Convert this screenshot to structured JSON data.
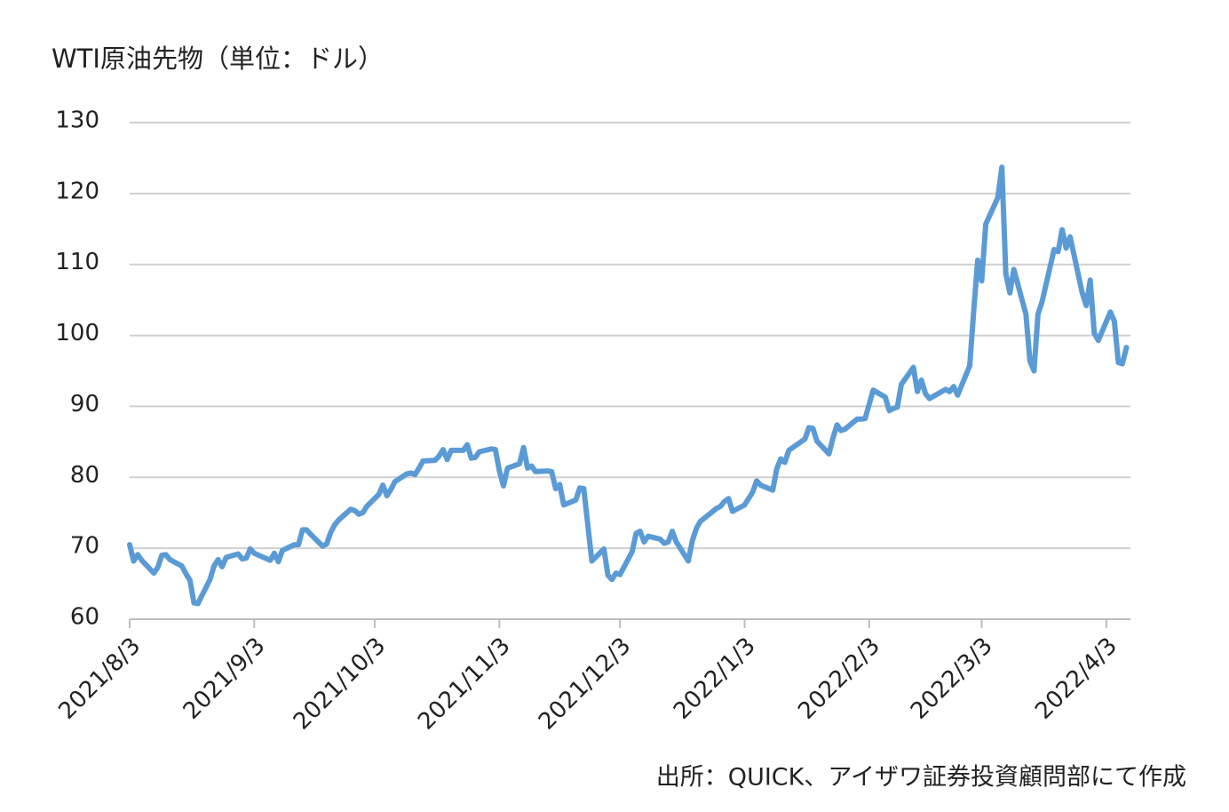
{
  "chart_data": {
    "type": "line",
    "title": "WTI原油先物（単位：ドル）",
    "source": "出所：QUICK、アイザワ証券投資顧問部にて作成",
    "color": "#5b9bd5",
    "xlim": [
      "2021/8/3",
      "2022/4/9"
    ],
    "xticks": [
      "2021/8/3",
      "2021/9/3",
      "2021/10/3",
      "2021/11/3",
      "2021/12/3",
      "2022/1/3",
      "2022/2/3",
      "2022/3/3",
      "2022/4/3"
    ],
    "ylim": [
      60,
      130
    ],
    "yticks": [
      60,
      70,
      80,
      90,
      100,
      110,
      120,
      130
    ],
    "grid": true,
    "x": [
      "2021/8/3",
      "2021/8/4",
      "2021/8/5",
      "2021/8/6",
      "2021/8/9",
      "2021/8/10",
      "2021/8/11",
      "2021/8/12",
      "2021/8/13",
      "2021/8/16",
      "2021/8/17",
      "2021/8/18",
      "2021/8/19",
      "2021/8/20",
      "2021/8/23",
      "2021/8/24",
      "2021/8/25",
      "2021/8/26",
      "2021/8/27",
      "2021/8/30",
      "2021/8/31",
      "2021/9/1",
      "2021/9/2",
      "2021/9/3",
      "2021/9/7",
      "2021/9/8",
      "2021/9/9",
      "2021/9/10",
      "2021/9/13",
      "2021/9/14",
      "2021/9/15",
      "2021/9/16",
      "2021/9/17",
      "2021/9/20",
      "2021/9/21",
      "2021/9/22",
      "2021/9/23",
      "2021/9/24",
      "2021/9/27",
      "2021/9/28",
      "2021/9/29",
      "2021/9/30",
      "2021/10/1",
      "2021/10/4",
      "2021/10/5",
      "2021/10/6",
      "2021/10/7",
      "2021/10/8",
      "2021/10/11",
      "2021/10/12",
      "2021/10/13",
      "2021/10/14",
      "2021/10/15",
      "2021/10/18",
      "2021/10/19",
      "2021/10/20",
      "2021/10/21",
      "2021/10/22",
      "2021/10/25",
      "2021/10/26",
      "2021/10/27",
      "2021/10/28",
      "2021/10/29",
      "2021/11/1",
      "2021/11/2",
      "2021/11/3",
      "2021/11/4",
      "2021/11/5",
      "2021/11/8",
      "2021/11/9",
      "2021/11/10",
      "2021/11/11",
      "2021/11/12",
      "2021/11/15",
      "2021/11/16",
      "2021/11/17",
      "2021/11/18",
      "2021/11/19",
      "2021/11/22",
      "2021/11/23",
      "2021/11/24",
      "2021/11/26",
      "2021/11/29",
      "2021/11/30",
      "2021/12/1",
      "2021/12/2",
      "2021/12/3",
      "2021/12/6",
      "2021/12/7",
      "2021/12/8",
      "2021/12/9",
      "2021/12/10",
      "2021/12/13",
      "2021/12/14",
      "2021/12/15",
      "2021/12/16",
      "2021/12/17",
      "2021/12/20",
      "2021/12/21",
      "2021/12/22",
      "2021/12/23",
      "2021/12/27",
      "2021/12/28",
      "2021/12/29",
      "2021/12/30",
      "2021/12/31",
      "2022/1/3",
      "2022/1/4",
      "2022/1/5",
      "2022/1/6",
      "2022/1/7",
      "2022/1/10",
      "2022/1/11",
      "2022/1/12",
      "2022/1/13",
      "2022/1/14",
      "2022/1/18",
      "2022/1/19",
      "2022/1/20",
      "2022/1/21",
      "2022/1/24",
      "2022/1/25",
      "2022/1/26",
      "2022/1/27",
      "2022/1/28",
      "2022/1/31",
      "2022/2/1",
      "2022/2/2",
      "2022/2/3",
      "2022/2/4",
      "2022/2/7",
      "2022/2/8",
      "2022/2/9",
      "2022/2/10",
      "2022/2/11",
      "2022/2/14",
      "2022/2/15",
      "2022/2/16",
      "2022/2/17",
      "2022/2/18",
      "2022/2/22",
      "2022/2/23",
      "2022/2/24",
      "2022/2/25",
      "2022/2/28",
      "2022/3/1",
      "2022/3/2",
      "2022/3/3",
      "2022/3/4",
      "2022/3/7",
      "2022/3/8",
      "2022/3/9",
      "2022/3/10",
      "2022/3/11",
      "2022/3/14",
      "2022/3/15",
      "2022/3/16",
      "2022/3/17",
      "2022/3/18",
      "2022/3/21",
      "2022/3/22",
      "2022/3/23",
      "2022/3/24",
      "2022/3/25",
      "2022/3/28",
      "2022/3/29",
      "2022/3/30",
      "2022/3/31",
      "2022/4/1",
      "2022/4/4",
      "2022/4/5",
      "2022/4/6",
      "2022/4/7",
      "2022/4/8"
    ],
    "values": [
      70.5,
      68.2,
      69.1,
      68.3,
      66.5,
      67.3,
      69.0,
      69.1,
      68.4,
      67.5,
      66.4,
      65.5,
      62.3,
      62.2,
      65.6,
      67.5,
      68.4,
      67.4,
      68.7,
      69.2,
      68.5,
      68.6,
      69.9,
      69.3,
      68.3,
      69.3,
      68.1,
      69.7,
      70.5,
      70.5,
      72.6,
      72.6,
      72.0,
      70.3,
      70.6,
      72.2,
      73.3,
      74.0,
      75.5,
      75.3,
      74.8,
      75.0,
      75.9,
      77.6,
      78.9,
      77.4,
      78.3,
      79.4,
      80.5,
      80.6,
      80.4,
      81.3,
      82.3,
      82.4,
      83.0,
      83.9,
      82.5,
      83.8,
      83.8,
      84.6,
      82.7,
      82.8,
      83.6,
      84.0,
      83.9,
      80.9,
      78.8,
      81.3,
      81.9,
      84.2,
      81.3,
      81.6,
      80.8,
      80.9,
      80.8,
      78.4,
      79.0,
      76.1,
      76.8,
      78.5,
      78.4,
      68.2,
      69.9,
      66.2,
      65.6,
      66.5,
      66.3,
      69.5,
      72.1,
      72.4,
      70.9,
      71.7,
      71.3,
      70.7,
      70.9,
      72.4,
      70.9,
      68.2,
      71.1,
      72.8,
      73.8,
      75.6,
      75.9,
      76.6,
      77.0,
      75.2,
      76.1,
      77.0,
      77.9,
      79.5,
      78.9,
      78.2,
      81.2,
      82.6,
      82.1,
      83.8,
      85.4,
      87.0,
      86.9,
      85.1,
      83.3,
      85.6,
      87.4,
      86.6,
      86.8,
      88.2,
      88.2,
      88.3,
      90.3,
      92.3,
      91.3,
      89.4,
      89.7,
      89.9,
      93.1,
      95.5,
      92.1,
      93.7,
      91.8,
      91.1,
      92.4,
      92.1,
      92.8,
      91.6,
      95.7,
      103.4,
      110.6,
      107.7,
      115.7,
      119.4,
      123.7,
      108.7,
      106.0,
      109.3,
      103.0,
      96.4,
      95.0,
      103.0,
      104.7,
      112.1,
      111.8,
      114.9,
      112.3,
      113.9,
      106.0,
      104.2,
      107.8,
      100.3,
      99.3,
      103.3,
      102.0,
      96.2,
      96.0,
      98.3
    ]
  }
}
